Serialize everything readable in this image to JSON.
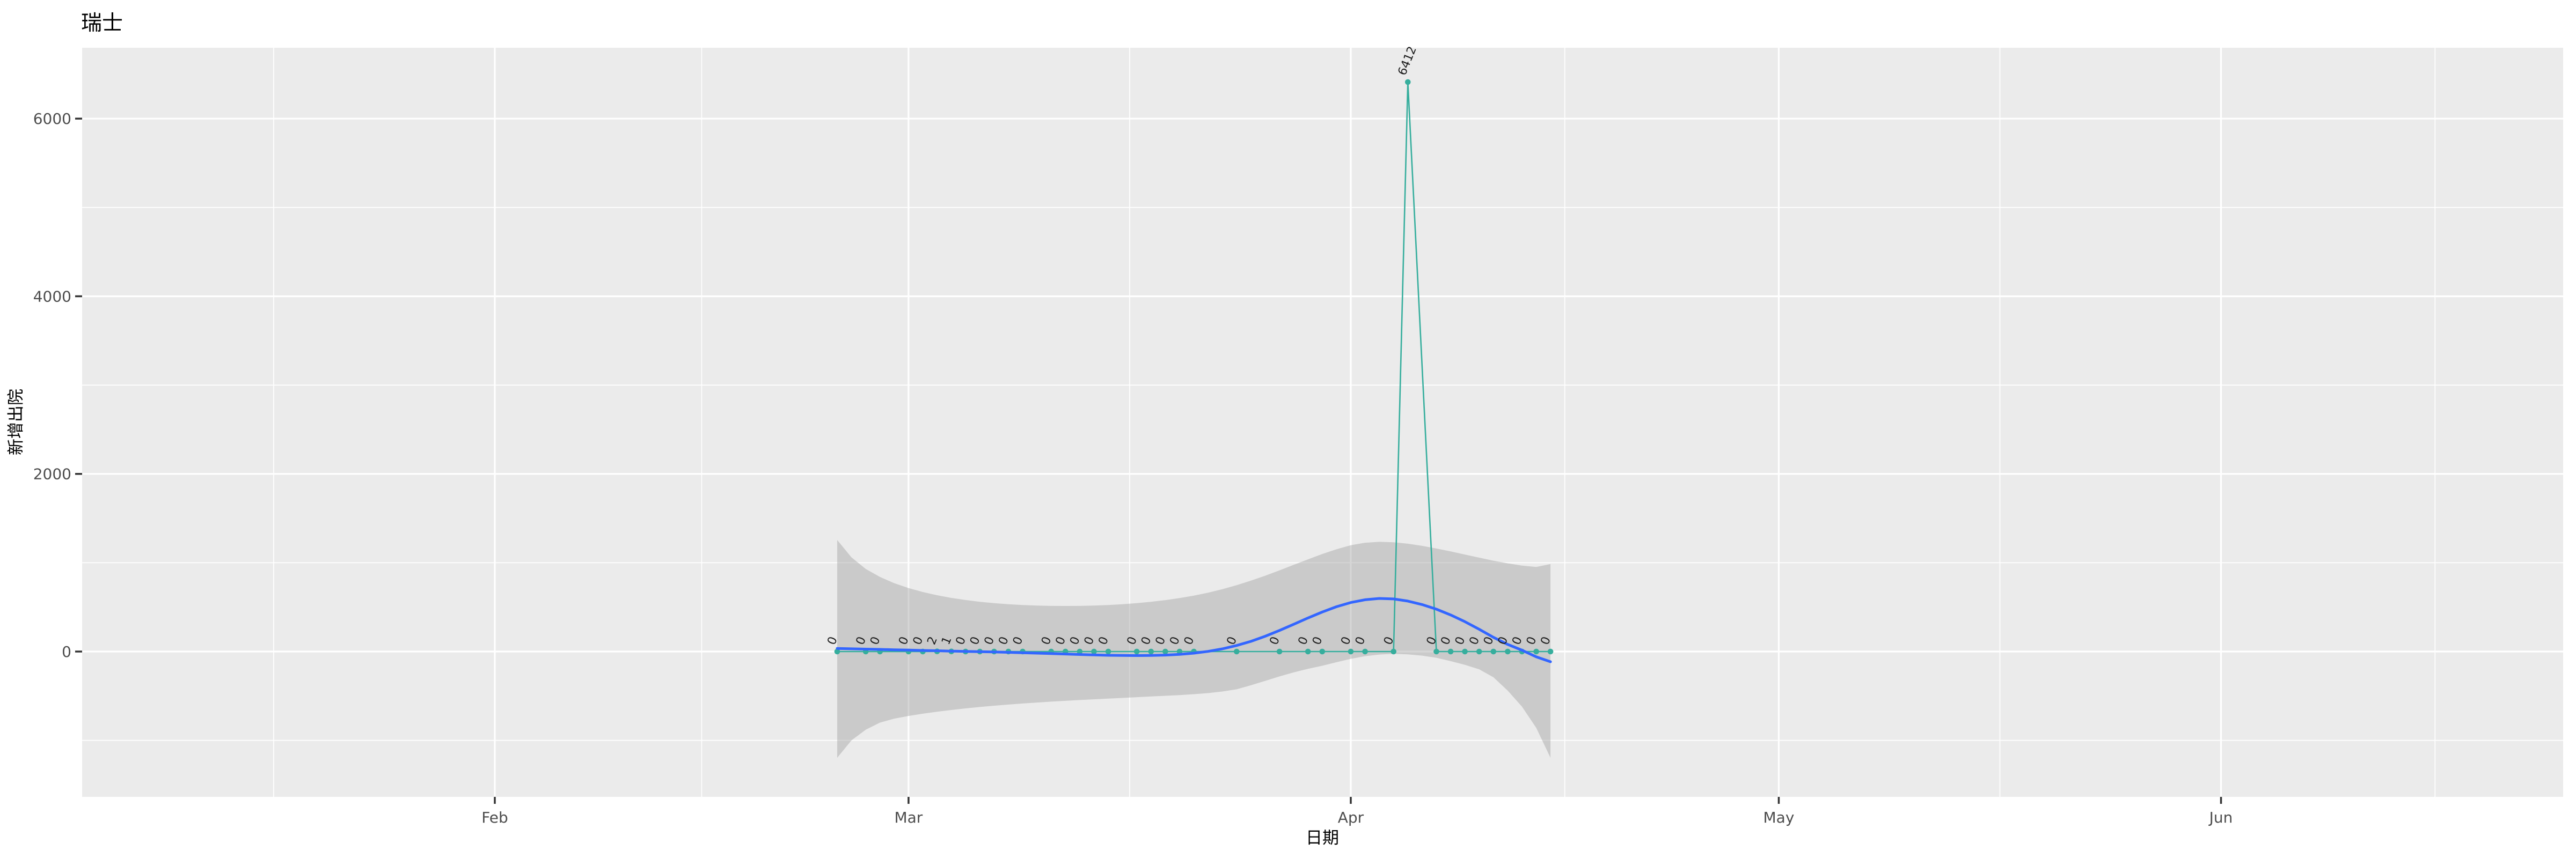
{
  "title": "瑞士",
  "axes": {
    "x": {
      "title": "日期",
      "ticks": [
        {
          "label": "Feb",
          "day": 32
        },
        {
          "label": "Mar",
          "day": 61
        },
        {
          "label": "Apr",
          "day": 92
        },
        {
          "label": "May",
          "day": 122
        },
        {
          "label": "Jun",
          "day": 153
        }
      ]
    },
    "y": {
      "title": "新增出院",
      "ticks": [
        {
          "label": "0",
          "value": 0
        },
        {
          "label": "2000",
          "value": 2000
        },
        {
          "label": "4000",
          "value": 4000
        },
        {
          "label": "6000",
          "value": 6000
        }
      ]
    }
  },
  "colors": {
    "panel": "#EBEBEB",
    "grid": "#FFFFFF",
    "ribbon": "rgba(153,153,153,0.4)",
    "smooth_line": "#3366FF",
    "series": "#36AE9D",
    "point_label": "#1c1c1c",
    "tick_mark": "#333333",
    "tick_text": "#4d4d4d"
  },
  "chart_data": {
    "type": "line",
    "title": "瑞士",
    "xlabel": "日期",
    "ylabel": "新增出院",
    "x_tick_labels": [
      "Feb",
      "Mar",
      "Apr",
      "May",
      "Jun"
    ],
    "x_minor_days": [
      16.5,
      46.5,
      76.5,
      107,
      137.5,
      168
    ],
    "y_minor_values": [
      -1000,
      1000,
      3000,
      5000
    ],
    "ylim": [
      -1660,
      6790
    ],
    "grid": true,
    "legend": false,
    "series": [
      {
        "name": "新增出院",
        "kind": "scatter-line-labels",
        "color": "#36AE9D",
        "points": [
          {
            "date": "2020-02-25",
            "day": 56,
            "value": 0,
            "label": "0"
          },
          {
            "date": "2020-02-27",
            "day": 58,
            "value": 0,
            "label": "0"
          },
          {
            "date": "2020-02-28",
            "day": 59,
            "value": 0,
            "label": "0"
          },
          {
            "date": "2020-03-01",
            "day": 61,
            "value": 0,
            "label": "0"
          },
          {
            "date": "2020-03-02",
            "day": 62,
            "value": 0,
            "label": "0"
          },
          {
            "date": "2020-03-03",
            "day": 63,
            "value": 2,
            "label": "2"
          },
          {
            "date": "2020-03-04",
            "day": 64,
            "value": 1,
            "label": "1"
          },
          {
            "date": "2020-03-05",
            "day": 65,
            "value": 0,
            "label": "0"
          },
          {
            "date": "2020-03-06",
            "day": 66,
            "value": 0,
            "label": "0"
          },
          {
            "date": "2020-03-07",
            "day": 67,
            "value": 0,
            "label": "0"
          },
          {
            "date": "2020-03-08",
            "day": 68,
            "value": 0,
            "label": "0"
          },
          {
            "date": "2020-03-09",
            "day": 69,
            "value": 0,
            "label": "0"
          },
          {
            "date": "2020-03-11",
            "day": 71,
            "value": 0,
            "label": "0"
          },
          {
            "date": "2020-03-12",
            "day": 72,
            "value": 0,
            "label": "0"
          },
          {
            "date": "2020-03-13",
            "day": 73,
            "value": 0,
            "label": "0"
          },
          {
            "date": "2020-03-14",
            "day": 74,
            "value": 0,
            "label": "0"
          },
          {
            "date": "2020-03-15",
            "day": 75,
            "value": 0,
            "label": "0"
          },
          {
            "date": "2020-03-17",
            "day": 77,
            "value": 0,
            "label": "0"
          },
          {
            "date": "2020-03-18",
            "day": 78,
            "value": 0,
            "label": "0"
          },
          {
            "date": "2020-03-19",
            "day": 79,
            "value": 0,
            "label": "0"
          },
          {
            "date": "2020-03-20",
            "day": 80,
            "value": 0,
            "label": "0"
          },
          {
            "date": "2020-03-21",
            "day": 81,
            "value": 0,
            "label": "0"
          },
          {
            "date": "2020-03-24",
            "day": 84,
            "value": 0,
            "label": "0"
          },
          {
            "date": "2020-03-27",
            "day": 87,
            "value": 0,
            "label": "0"
          },
          {
            "date": "2020-03-29",
            "day": 89,
            "value": 0,
            "label": "0"
          },
          {
            "date": "2020-03-30",
            "day": 90,
            "value": 0,
            "label": "0"
          },
          {
            "date": "2020-04-01",
            "day": 92,
            "value": 0,
            "label": "0"
          },
          {
            "date": "2020-04-02",
            "day": 93,
            "value": 0,
            "label": "0"
          },
          {
            "date": "2020-04-04",
            "day": 95,
            "value": 0,
            "label": "0"
          },
          {
            "date": "2020-04-05",
            "day": 96,
            "value": 6412,
            "label": "6412"
          },
          {
            "date": "2020-04-07",
            "day": 98,
            "value": 0,
            "label": "0"
          },
          {
            "date": "2020-04-08",
            "day": 99,
            "value": 0,
            "label": "0"
          },
          {
            "date": "2020-04-09",
            "day": 100,
            "value": 0,
            "label": "0"
          },
          {
            "date": "2020-04-10",
            "day": 101,
            "value": 0,
            "label": "0"
          },
          {
            "date": "2020-04-11",
            "day": 102,
            "value": 0,
            "label": "0"
          },
          {
            "date": "2020-04-12",
            "day": 103,
            "value": 0,
            "label": "0"
          },
          {
            "date": "2020-04-13",
            "day": 104,
            "value": 0,
            "label": "0"
          },
          {
            "date": "2020-04-14",
            "day": 105,
            "value": 0,
            "label": "0"
          },
          {
            "date": "2020-04-15",
            "day": 106,
            "value": 0,
            "label": "0"
          }
        ]
      },
      {
        "name": "loess-smooth",
        "kind": "line",
        "color": "#3366FF",
        "points": [
          [
            56,
            35
          ],
          [
            57,
            31
          ],
          [
            58,
            27
          ],
          [
            59,
            24
          ],
          [
            60,
            20
          ],
          [
            61,
            16
          ],
          [
            62,
            12
          ],
          [
            63,
            9
          ],
          [
            64,
            5
          ],
          [
            65,
            2
          ],
          [
            66,
            -1
          ],
          [
            67,
            -5
          ],
          [
            68,
            -9
          ],
          [
            69,
            -13
          ],
          [
            70,
            -18
          ],
          [
            71,
            -23
          ],
          [
            72,
            -28
          ],
          [
            73,
            -33
          ],
          [
            74,
            -38
          ],
          [
            75,
            -42
          ],
          [
            76,
            -44
          ],
          [
            77,
            -45
          ],
          [
            78,
            -44
          ],
          [
            79,
            -40
          ],
          [
            80,
            -32
          ],
          [
            81,
            -18
          ],
          [
            82,
            2
          ],
          [
            83,
            30
          ],
          [
            84,
            68
          ],
          [
            85,
            115
          ],
          [
            86,
            172
          ],
          [
            87,
            237
          ],
          [
            88,
            307
          ],
          [
            89,
            378
          ],
          [
            90,
            445
          ],
          [
            91,
            505
          ],
          [
            92,
            552
          ],
          [
            93,
            583
          ],
          [
            94,
            598
          ],
          [
            95,
            592
          ],
          [
            96,
            568
          ],
          [
            97,
            529
          ],
          [
            98,
            477
          ],
          [
            99,
            412
          ],
          [
            100,
            336
          ],
          [
            101,
            251
          ],
          [
            102,
            160
          ],
          [
            103,
            80
          ],
          [
            104,
            15
          ],
          [
            105,
            -60
          ],
          [
            106,
            -115
          ]
        ]
      },
      {
        "name": "confidence-ribbon",
        "kind": "ribbon",
        "color": "rgba(153,153,153,0.4)",
        "points": [
          [
            56,
            1256,
            -1196
          ],
          [
            57,
            1060,
            -1000
          ],
          [
            58,
            930,
            -880
          ],
          [
            59,
            840,
            -800
          ],
          [
            60,
            770,
            -755
          ],
          [
            61,
            715,
            -725
          ],
          [
            62,
            670,
            -700
          ],
          [
            63,
            634,
            -678
          ],
          [
            64,
            604,
            -658
          ],
          [
            65,
            580,
            -640
          ],
          [
            66,
            560,
            -624
          ],
          [
            67,
            545,
            -610
          ],
          [
            68,
            533,
            -597
          ],
          [
            69,
            524,
            -585
          ],
          [
            70,
            518,
            -574
          ],
          [
            71,
            514,
            -564
          ],
          [
            72,
            513,
            -555
          ],
          [
            73,
            514,
            -546
          ],
          [
            74,
            518,
            -538
          ],
          [
            75,
            524,
            -530
          ],
          [
            76,
            533,
            -522
          ],
          [
            77,
            545,
            -514
          ],
          [
            78,
            560,
            -506
          ],
          [
            79,
            579,
            -498
          ],
          [
            80,
            602,
            -490
          ],
          [
            81,
            630,
            -480
          ],
          [
            82,
            663,
            -468
          ],
          [
            83,
            702,
            -450
          ],
          [
            84,
            747,
            -425
          ],
          [
            85,
            798,
            -380
          ],
          [
            86,
            854,
            -330
          ],
          [
            87,
            914,
            -280
          ],
          [
            88,
            976,
            -235
          ],
          [
            89,
            1038,
            -195
          ],
          [
            90,
            1098,
            -160
          ],
          [
            91,
            1152,
            -120
          ],
          [
            92,
            1197,
            -82
          ],
          [
            93,
            1225,
            -52
          ],
          [
            94,
            1235,
            -34
          ],
          [
            95,
            1230,
            -26
          ],
          [
            96,
            1214,
            -32
          ],
          [
            97,
            1190,
            -46
          ],
          [
            98,
            1160,
            -70
          ],
          [
            99,
            1127,
            -108
          ],
          [
            100,
            1092,
            -150
          ],
          [
            101,
            1057,
            -200
          ],
          [
            102,
            1023,
            -290
          ],
          [
            103,
            993,
            -440
          ],
          [
            104,
            968,
            -620
          ],
          [
            105,
            952,
            -860
          ],
          [
            106,
            985,
            -1196
          ]
        ]
      }
    ],
    "annotations": [
      {
        "text": "6412",
        "date": "2020-04-05",
        "value": 6412
      }
    ]
  }
}
